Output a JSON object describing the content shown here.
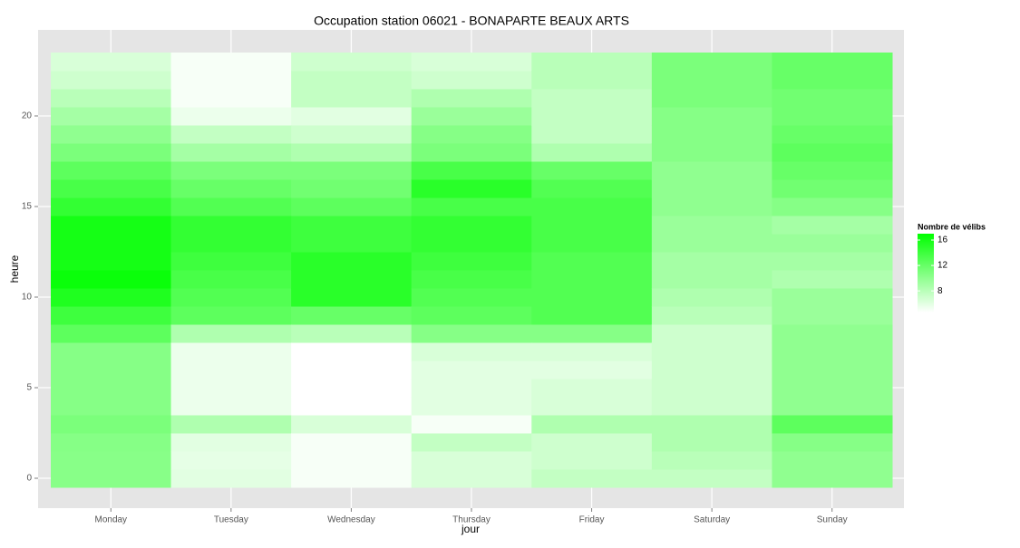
{
  "chart_data": {
    "type": "heatmap",
    "title": "Occupation station 06021 - BONAPARTE BEAUX ARTS",
    "x_label": "jour",
    "y_label": "heure",
    "categories": [
      "Monday",
      "Tuesday",
      "Wednesday",
      "Thursday",
      "Friday",
      "Saturday",
      "Sunday"
    ],
    "y": [
      0,
      1,
      2,
      3,
      4,
      5,
      6,
      7,
      8,
      9,
      10,
      11,
      12,
      13,
      14,
      15,
      16,
      17,
      18,
      19,
      20,
      21,
      22,
      23
    ],
    "values": [
      [
        10.4,
        10.4,
        10.5,
        11,
        10.5,
        10.5,
        10.5,
        10.5,
        12.5,
        14,
        15.5,
        16.5,
        16,
        16,
        16,
        14.5,
        13.5,
        12.5,
        11,
        10,
        9,
        8,
        7,
        6.5
      ],
      [
        6,
        5.8,
        6,
        8.5,
        5.5,
        5.5,
        5.5,
        5.5,
        8.5,
        12.5,
        13,
        13.5,
        14,
        14.5,
        14.5,
        13,
        12,
        11,
        9,
        7.5,
        5.5,
        5,
        5,
        5
      ],
      [
        5,
        5,
        5,
        6.5,
        4.6,
        4.6,
        4.6,
        4.6,
        8,
        12,
        15,
        15,
        15,
        14,
        14,
        12.5,
        11.5,
        11,
        8.5,
        7,
        6,
        7.5,
        7.5,
        7
      ],
      [
        6.5,
        6.5,
        7.5,
        5,
        6,
        6,
        6,
        6.5,
        10.5,
        12.5,
        13,
        13.5,
        14,
        14.5,
        14.5,
        13.5,
        15,
        13.5,
        11,
        10.5,
        9.5,
        8.5,
        7,
        6.5
      ],
      [
        7.5,
        7,
        7,
        8.5,
        6.5,
        6.5,
        6,
        6.5,
        10.5,
        13,
        13,
        13,
        13,
        13.5,
        13.5,
        13.5,
        13,
        12,
        8.5,
        7.5,
        7.5,
        7.5,
        8,
        8
      ],
      [
        7.5,
        8,
        8.5,
        8.5,
        7,
        7,
        7,
        7,
        7,
        8,
        8.5,
        9,
        9,
        9.5,
        9.5,
        10,
        10,
        10,
        10.5,
        10.5,
        10.5,
        11,
        11,
        11
      ],
      [
        10,
        10,
        10.5,
        12.5,
        10,
        10,
        10,
        10,
        10,
        9.5,
        9.5,
        8.5,
        9,
        9.5,
        9,
        10.5,
        11.5,
        12,
        12.5,
        12,
        11.5,
        11.5,
        12,
        12
      ]
    ],
    "ylim": [
      -0.5,
      23.5
    ],
    "yticks": [
      0,
      5,
      10,
      15,
      20
    ],
    "legend_title": "Nombre de vélibs",
    "colorlim": [
      4.6,
      17
    ],
    "colorticks": [
      8,
      12,
      16
    ],
    "low_color": "#ffffff",
    "high_color": "#00ff00",
    "grid": true
  }
}
